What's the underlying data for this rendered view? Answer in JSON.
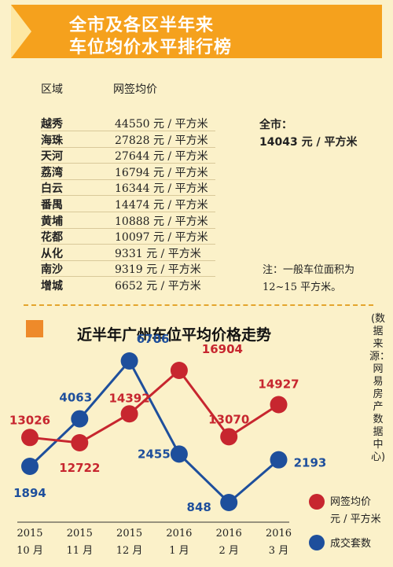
{
  "header": {
    "title_line1": "全市及各区半年来",
    "title_line2": "车位均价水平排行榜"
  },
  "table": {
    "col_region": "区域",
    "col_price": "网签均价",
    "rows": [
      {
        "district": "越秀",
        "price": "44550 元 / 平方米"
      },
      {
        "district": "海珠",
        "price": "27828 元 / 平方米"
      },
      {
        "district": "天河",
        "price": "27644 元 / 平方米"
      },
      {
        "district": "荔湾",
        "price": "16794 元 / 平方米"
      },
      {
        "district": "白云",
        "price": "16344 元 / 平方米"
      },
      {
        "district": "番禺",
        "price": "14474 元 / 平方米"
      },
      {
        "district": "黄埔",
        "price": "10888 元 / 平方米"
      },
      {
        "district": "花都",
        "price": "10097 元 / 平方米"
      },
      {
        "district": "从化",
        "price": "9331 元 / 平方米"
      },
      {
        "district": "南沙",
        "price": "9319 元 / 平方米"
      },
      {
        "district": "增城",
        "price": "6652 元 / 平方米"
      }
    ],
    "overall_label": "全市：",
    "overall_value": "14043 元 / 平方米",
    "note": "注：一般车位面积为 12~15 平方米。"
  },
  "source_note": "(数据来源：网易房产数据中心)",
  "colors": {
    "red": "#c7262f",
    "blue": "#1e4f9c",
    "accent": "#f5a11d"
  },
  "chart_data": {
    "type": "line",
    "title": "近半年广州车位平均价格走势",
    "categories": [
      {
        "year": "2015",
        "month": "10 月"
      },
      {
        "year": "2015",
        "month": "11 月"
      },
      {
        "year": "2015",
        "month": "12 月"
      },
      {
        "year": "2016",
        "month": "1 月"
      },
      {
        "year": "2016",
        "month": "2 月"
      },
      {
        "year": "2016",
        "month": "3 月"
      }
    ],
    "series": [
      {
        "name": "网签均价 元 / 平方米",
        "legend_line1": "网签均价",
        "legend_line2": "元 / 平方米",
        "color": "#c7262f",
        "values": [
          13026,
          12722,
          14392,
          16904,
          13070,
          14927
        ]
      },
      {
        "name": "成交套数",
        "legend_line1": "成交套数",
        "color": "#1e4f9c",
        "values": [
          1894,
          4063,
          6706,
          2455,
          848,
          2193
        ]
      }
    ],
    "legend_placement": "bottom-right",
    "grid": false
  }
}
